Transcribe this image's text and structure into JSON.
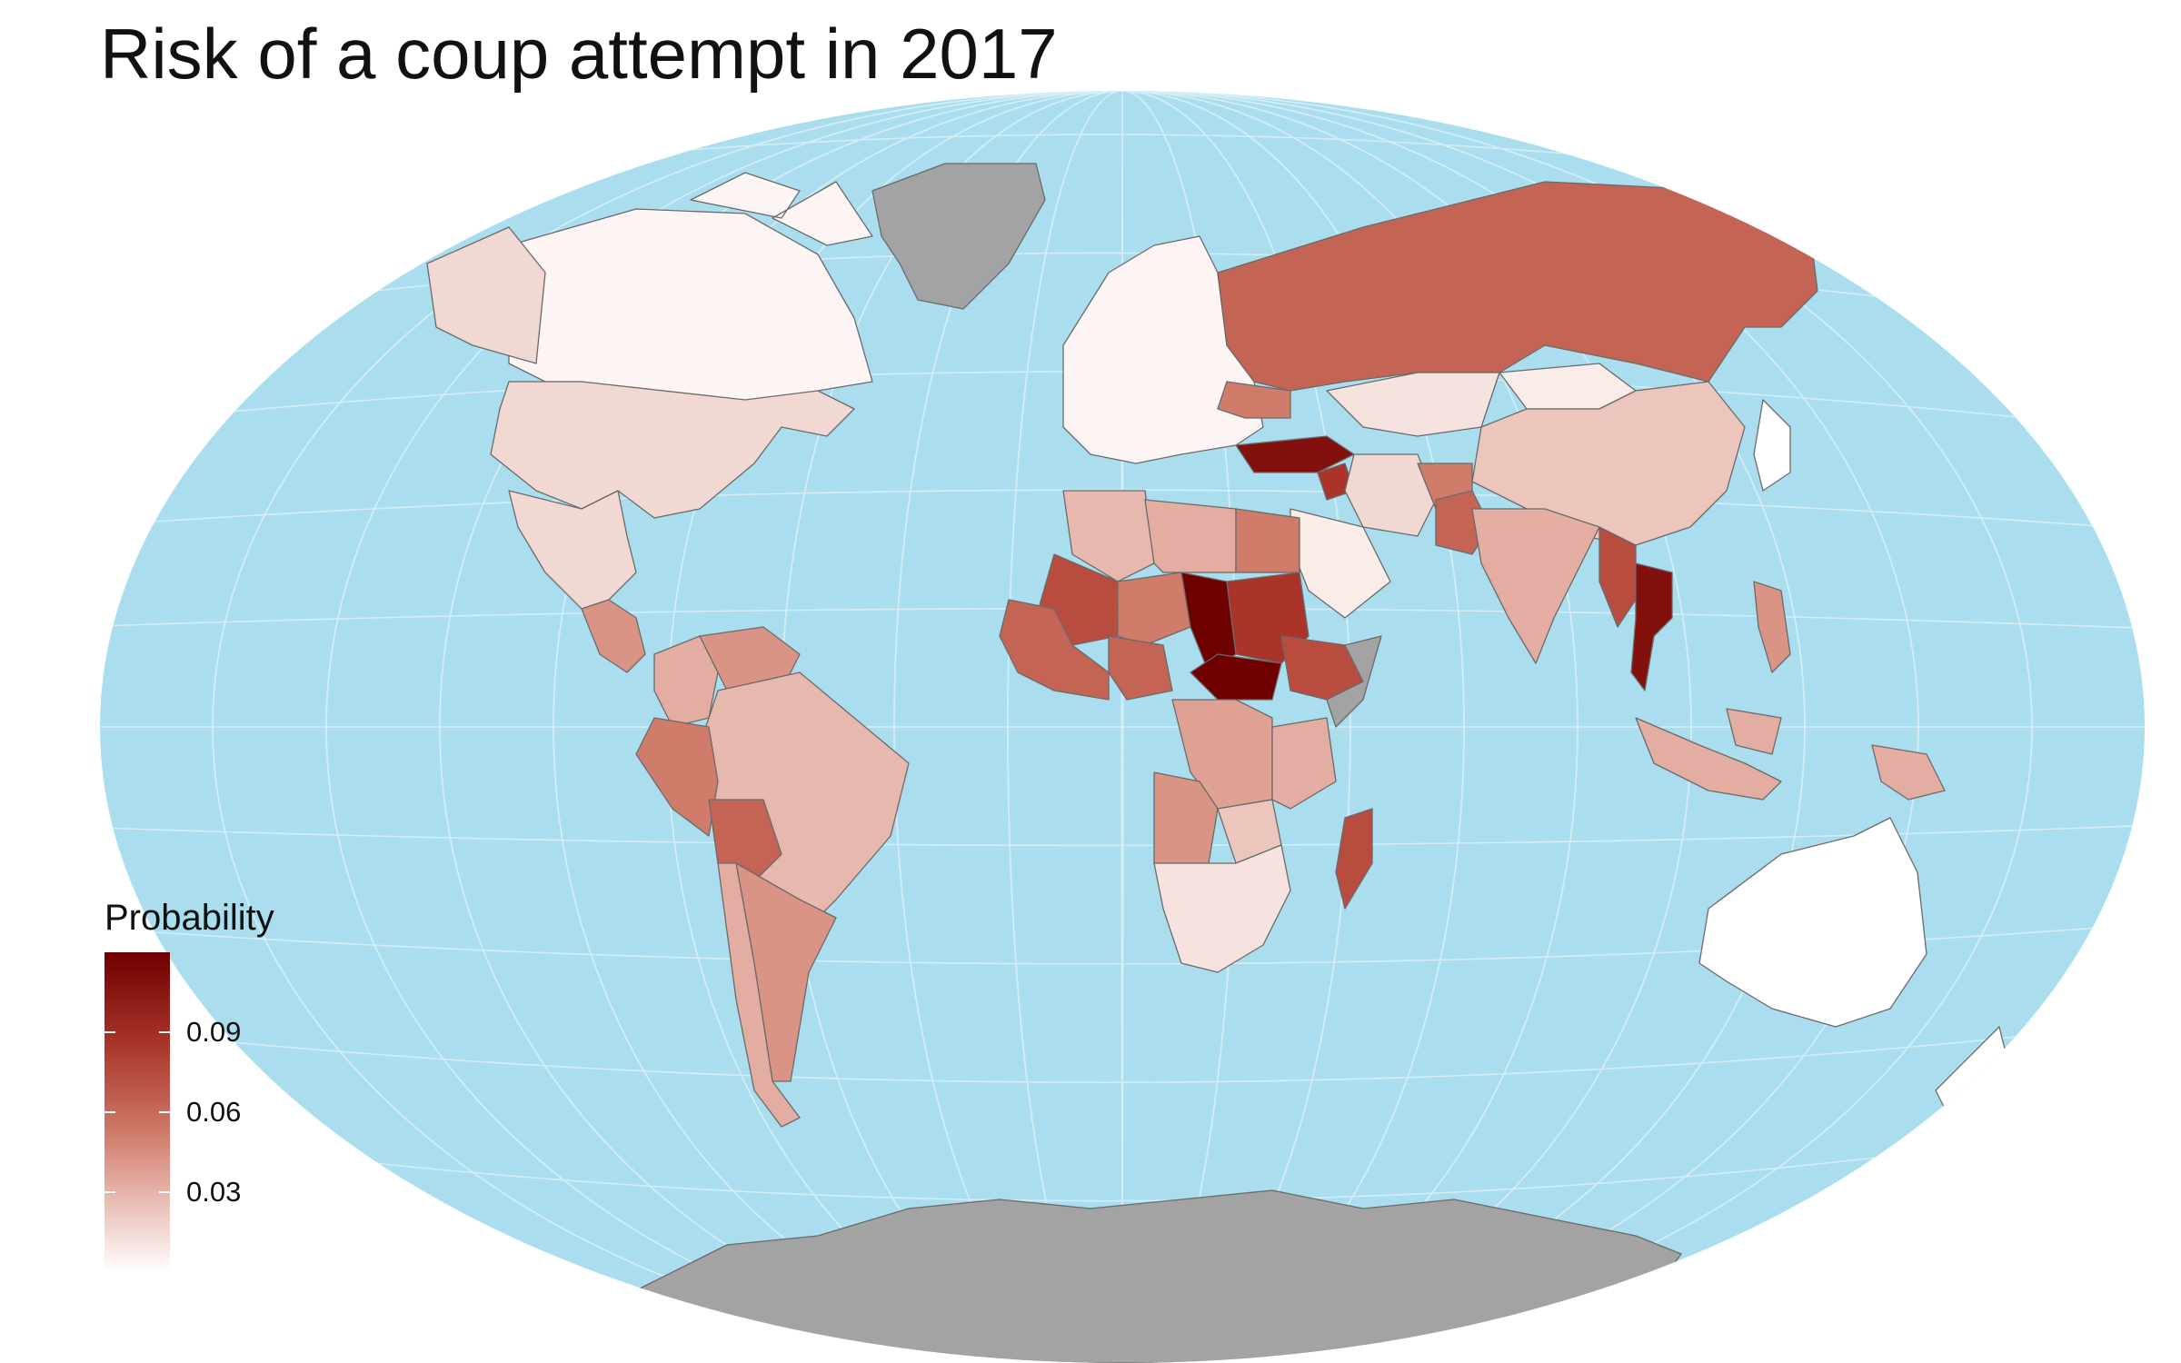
{
  "title": "Risk of a coup attempt in 2017",
  "colors": {
    "ocean": "#aadeee",
    "missing": "#a3a3a3",
    "border": "#6a6a6a",
    "graticule": "#d5eef6",
    "scale_high": "#6e0000",
    "scale_low": "#ffffff"
  },
  "legend": {
    "title": "Probability",
    "ticks": [
      {
        "label": "0.09",
        "value": 0.09
      },
      {
        "label": "0.06",
        "value": 0.06
      },
      {
        "label": "0.03",
        "value": 0.03
      }
    ],
    "range": [
      0.0,
      0.12
    ]
  },
  "regions": [
    {
      "name": "Canada",
      "value": 0.005
    },
    {
      "name": "United States",
      "value": 0.02
    },
    {
      "name": "Alaska",
      "value": 0.02
    },
    {
      "name": "Mexico",
      "value": 0.02
    },
    {
      "name": "Central America",
      "value": 0.05
    },
    {
      "name": "Colombia",
      "value": 0.04
    },
    {
      "name": "Venezuela",
      "value": 0.05
    },
    {
      "name": "Brazil",
      "value": 0.035
    },
    {
      "name": "Peru",
      "value": 0.06
    },
    {
      "name": "Bolivia",
      "value": 0.07
    },
    {
      "name": "Argentina",
      "value": 0.05
    },
    {
      "name": "Chile",
      "value": 0.04
    },
    {
      "name": "Greenland",
      "value": null
    },
    {
      "name": "Europe",
      "value": 0.005
    },
    {
      "name": "Russia",
      "value": 0.07
    },
    {
      "name": "Ukraine",
      "value": 0.06
    },
    {
      "name": "Turkey",
      "value": 0.11
    },
    {
      "name": "Syria",
      "value": 0.09
    },
    {
      "name": "Kazakhstan",
      "value": 0.015
    },
    {
      "name": "Mongolia",
      "value": 0.01
    },
    {
      "name": "China",
      "value": 0.03
    },
    {
      "name": "Iran",
      "value": 0.02
    },
    {
      "name": "Saudi Arabia",
      "value": 0.01
    },
    {
      "name": "Afghanistan",
      "value": 0.06
    },
    {
      "name": "Pakistan",
      "value": 0.07
    },
    {
      "name": "India",
      "value": 0.04
    },
    {
      "name": "Myanmar",
      "value": 0.08
    },
    {
      "name": "Thailand",
      "value": 0.11
    },
    {
      "name": "Indonesia",
      "value": 0.04
    },
    {
      "name": "Papua New Guinea",
      "value": 0.04
    },
    {
      "name": "Philippines",
      "value": 0.05
    },
    {
      "name": "Australia",
      "value": 0.0
    },
    {
      "name": "New Zealand",
      "value": 0.0
    },
    {
      "name": "Japan",
      "value": 0.0
    },
    {
      "name": "Algeria",
      "value": 0.035
    },
    {
      "name": "Libya",
      "value": 0.04
    },
    {
      "name": "Egypt",
      "value": 0.06
    },
    {
      "name": "Mali",
      "value": 0.08
    },
    {
      "name": "Niger",
      "value": 0.06
    },
    {
      "name": "Chad",
      "value": 0.12
    },
    {
      "name": "Sudan",
      "value": 0.09
    },
    {
      "name": "Central African Republic",
      "value": 0.12
    },
    {
      "name": "Ethiopia",
      "value": 0.08
    },
    {
      "name": "Somalia",
      "value": null
    },
    {
      "name": "Nigeria",
      "value": 0.07
    },
    {
      "name": "West Africa",
      "value": 0.07
    },
    {
      "name": "DR Congo",
      "value": 0.045
    },
    {
      "name": "Angola",
      "value": 0.05
    },
    {
      "name": "Zambia",
      "value": 0.03
    },
    {
      "name": "Tanzania",
      "value": 0.04
    },
    {
      "name": "Southern Africa",
      "value": 0.015
    },
    {
      "name": "Madagascar",
      "value": 0.08
    },
    {
      "name": "Antarctica",
      "value": null
    }
  ]
}
